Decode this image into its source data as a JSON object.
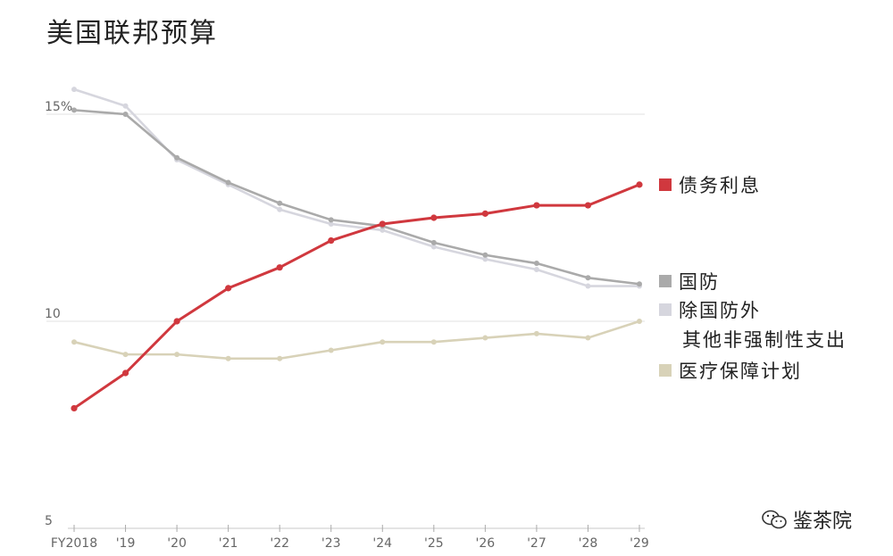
{
  "title": "美国联邦预算",
  "watermark": "鉴茶院",
  "chart_data": {
    "type": "line",
    "title": "美国联邦预算",
    "x": [
      "FY2018",
      "'19",
      "'20",
      "'21",
      "'22",
      "'23",
      "'24",
      "'25",
      "'26",
      "'27",
      "'28",
      "'29"
    ],
    "y_ticks": [
      {
        "value": 15,
        "label": "15%"
      },
      {
        "value": 10,
        "label": "10"
      },
      {
        "value": 5,
        "label": "5"
      }
    ],
    "ylim": [
      5,
      16
    ],
    "grid": "horizontal at labeled ticks",
    "legend_position": "right",
    "series": [
      {
        "name": "债务利息",
        "color": "#d0383e",
        "values": [
          7.9,
          8.75,
          10.0,
          10.8,
          11.3,
          11.95,
          12.35,
          12.5,
          12.6,
          12.8,
          12.8,
          13.3
        ]
      },
      {
        "name": "国防",
        "color": "#aaaaaa",
        "values": [
          15.1,
          15.0,
          13.95,
          13.35,
          12.85,
          12.45,
          12.3,
          11.9,
          11.6,
          11.4,
          11.05,
          10.9
        ]
      },
      {
        "name": "除国防外 其他非强制性支出",
        "color": "#d6d6de",
        "values": [
          15.6,
          15.2,
          13.9,
          13.3,
          12.7,
          12.35,
          12.2,
          11.8,
          11.5,
          11.25,
          10.85,
          10.85
        ]
      },
      {
        "name": "医疗保障计划",
        "color": "#d8d2b8",
        "values": [
          9.5,
          9.2,
          9.2,
          9.1,
          9.1,
          9.3,
          9.5,
          9.5,
          9.6,
          9.7,
          9.6,
          10.0
        ]
      }
    ],
    "legend": [
      {
        "label": "债务利息",
        "color": "#d0383e"
      },
      {
        "label": "国防",
        "color": "#aaaaaa"
      },
      {
        "label": "除国防外",
        "label2": "其他非强制性支出",
        "color": "#d6d6de"
      },
      {
        "label": "医疗保障计划",
        "color": "#d8d2b8"
      }
    ]
  }
}
